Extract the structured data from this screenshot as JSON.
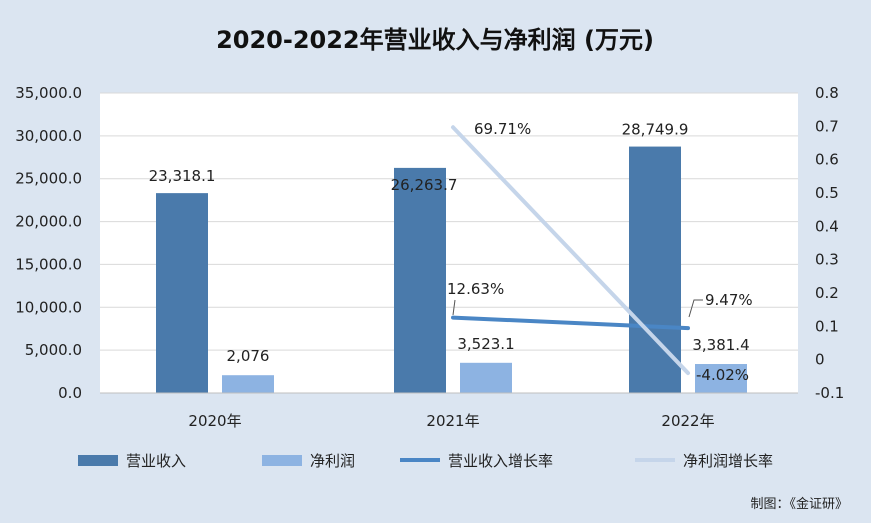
{
  "chart_data": {
    "type": "bar",
    "title": "2020-2022年营业收入与净利润 (万元)",
    "categories": [
      "2020年",
      "2021年",
      "2022年"
    ],
    "series": [
      {
        "name": "营业收入",
        "kind": "bar",
        "axis": "left",
        "color": "#4a7aab",
        "values": [
          23318.1,
          26263.7,
          28749.9
        ],
        "labels": [
          "23,318.1",
          "26,263.7",
          "28,749.9"
        ]
      },
      {
        "name": "净利润",
        "kind": "bar",
        "axis": "left",
        "color": "#8db3e2",
        "values": [
          2076,
          3523.1,
          3381.4
        ],
        "labels": [
          "2,076",
          "3,523.1",
          "3,381.4"
        ]
      },
      {
        "name": "营业收入增长率",
        "kind": "line",
        "axis": "right",
        "color": "#4a86c5",
        "values": [
          null,
          0.1263,
          0.0947
        ],
        "labels": [
          null,
          "12.63%",
          "9.47%"
        ]
      },
      {
        "name": "净利润增长率",
        "kind": "line",
        "axis": "right",
        "color": "#c5d5ea",
        "values": [
          null,
          0.6971,
          -0.0402
        ],
        "labels": [
          null,
          "69.71%",
          "-4.02%"
        ]
      }
    ],
    "y_left": {
      "min": 0,
      "max": 35000,
      "step": 5000,
      "ticks": [
        "0.0",
        "5,000.0",
        "10,000.0",
        "15,000.0",
        "20,000.0",
        "25,000.0",
        "30,000.0",
        "35,000.0"
      ]
    },
    "y_right": {
      "min": -0.1,
      "max": 0.8,
      "step": 0.1,
      "ticks": [
        "-0.1",
        "0",
        "0.1",
        "0.2",
        "0.3",
        "0.4",
        "0.5",
        "0.6",
        "0.7",
        "0.8"
      ]
    },
    "grid": true,
    "legend_position": "bottom"
  },
  "source_note": "制图：《金证研》",
  "colors": {
    "background": "#dbe5f1",
    "plot_background": "#ffffff",
    "grid": "#d9d9d9"
  }
}
